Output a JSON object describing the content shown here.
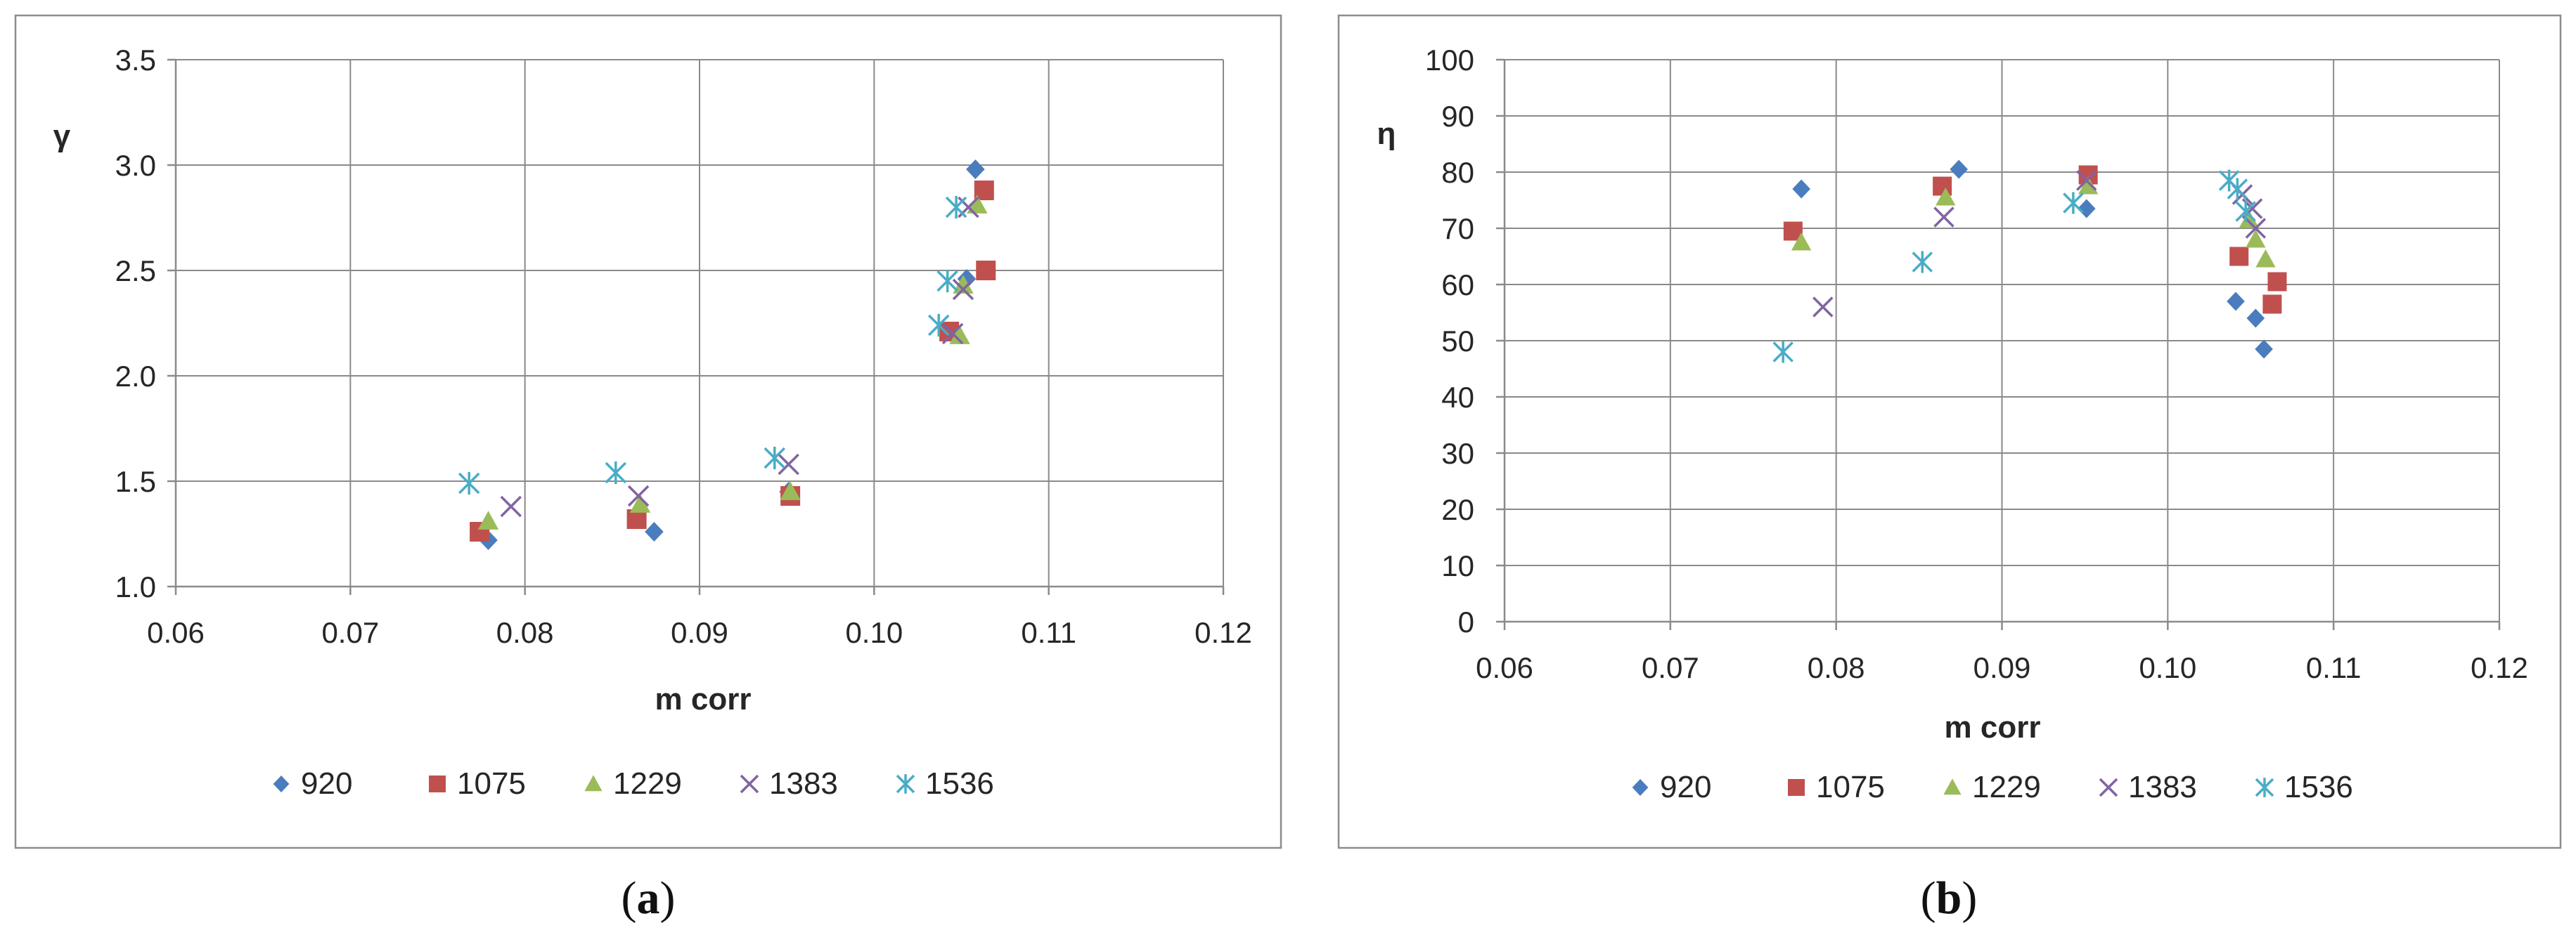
{
  "panels": [
    {
      "caption": "a",
      "chart_data": {
        "type": "scatter",
        "title": "",
        "xlabel": "m corr",
        "ylabel": "γ",
        "xlim": [
          0.06,
          0.12
        ],
        "ylim": [
          1.0,
          3.5
        ],
        "xticks": [
          "0.06",
          "0.07",
          "0.08",
          "0.09",
          "0.10",
          "0.11",
          "0.12"
        ],
        "yticks": [
          "1.0",
          "1.5",
          "2.0",
          "2.5",
          "3.0",
          "3.5"
        ],
        "grid": true,
        "legend_position": "bottom",
        "series": [
          {
            "name": "920",
            "marker": "diamond",
            "color": "#4a7dbd",
            "points": [
              [
                0.0779,
                1.22
              ],
              [
                0.0874,
                1.26
              ],
              [
                0.0951,
                1.45
              ],
              [
                0.1053,
                2.46
              ],
              [
                0.1058,
                2.98
              ]
            ]
          },
          {
            "name": "1075",
            "marker": "square",
            "color": "#c0504d",
            "points": [
              [
                0.0774,
                1.26
              ],
              [
                0.0864,
                1.32
              ],
              [
                0.0952,
                1.43
              ],
              [
                0.1043,
                2.21
              ],
              [
                0.1064,
                2.5
              ],
              [
                0.1063,
                2.88
              ]
            ]
          },
          {
            "name": "1229",
            "marker": "triangle",
            "color": "#9bbb59",
            "points": [
              [
                0.0779,
                1.31
              ],
              [
                0.0866,
                1.39
              ],
              [
                0.0952,
                1.45
              ],
              [
                0.1049,
                2.19
              ],
              [
                0.1051,
                2.43
              ],
              [
                0.1059,
                2.81
              ]
            ]
          },
          {
            "name": "1383",
            "marker": "x",
            "color": "#8064a2",
            "points": [
              [
                0.0792,
                1.38
              ],
              [
                0.0865,
                1.43
              ],
              [
                0.0951,
                1.58
              ],
              [
                0.1045,
                2.2
              ],
              [
                0.1051,
                2.41
              ],
              [
                0.1054,
                2.8
              ]
            ]
          },
          {
            "name": "1536",
            "marker": "star",
            "color": "#4bacc6",
            "points": [
              [
                0.0768,
                1.49
              ],
              [
                0.0852,
                1.54
              ],
              [
                0.0943,
                1.61
              ],
              [
                0.1037,
                2.24
              ],
              [
                0.1042,
                2.45
              ],
              [
                0.1047,
                2.8
              ]
            ]
          }
        ]
      }
    },
    {
      "caption": "b",
      "chart_data": {
        "type": "scatter",
        "title": "",
        "xlabel": "m corr",
        "ylabel": "η",
        "xlim": [
          0.06,
          0.12
        ],
        "ylim": [
          0,
          100
        ],
        "xticks": [
          "0.06",
          "0.07",
          "0.08",
          "0.09",
          "0.10",
          "0.11",
          "0.12"
        ],
        "yticks": [
          "0",
          "10",
          "20",
          "30",
          "40",
          "50",
          "60",
          "70",
          "80",
          "90",
          "100"
        ],
        "grid": true,
        "legend_position": "bottom",
        "series": [
          {
            "name": "920",
            "marker": "diamond",
            "color": "#4a7dbd",
            "points": [
              [
                0.0779,
                77
              ],
              [
                0.0874,
                80.5
              ],
              [
                0.0951,
                73.5
              ],
              [
                0.1041,
                57
              ],
              [
                0.1053,
                54
              ],
              [
                0.1058,
                48.5
              ]
            ]
          },
          {
            "name": "1075",
            "marker": "square",
            "color": "#c0504d",
            "points": [
              [
                0.0774,
                69.5
              ],
              [
                0.0864,
                77.5
              ],
              [
                0.0952,
                79.5
              ],
              [
                0.1043,
                65
              ],
              [
                0.1063,
                56.5
              ],
              [
                0.1066,
                60.5
              ]
            ]
          },
          {
            "name": "1229",
            "marker": "triangle",
            "color": "#9bbb59",
            "points": [
              [
                0.0779,
                67.5
              ],
              [
                0.0866,
                75.5
              ],
              [
                0.0952,
                77.5
              ],
              [
                0.1049,
                71.5
              ],
              [
                0.1053,
                68
              ],
              [
                0.1059,
                64.5
              ]
            ]
          },
          {
            "name": "1383",
            "marker": "x",
            "color": "#8064a2",
            "points": [
              [
                0.0792,
                56
              ],
              [
                0.0865,
                72
              ],
              [
                0.0951,
                78.5
              ],
              [
                0.1045,
                76
              ],
              [
                0.1051,
                73.5
              ],
              [
                0.1053,
                70
              ]
            ]
          },
          {
            "name": "1536",
            "marker": "star",
            "color": "#4bacc6",
            "points": [
              [
                0.0768,
                48
              ],
              [
                0.0852,
                64
              ],
              [
                0.0943,
                74.5
              ],
              [
                0.1037,
                78.5
              ],
              [
                0.1042,
                77
              ],
              [
                0.1047,
                73
              ]
            ]
          }
        ]
      }
    }
  ]
}
